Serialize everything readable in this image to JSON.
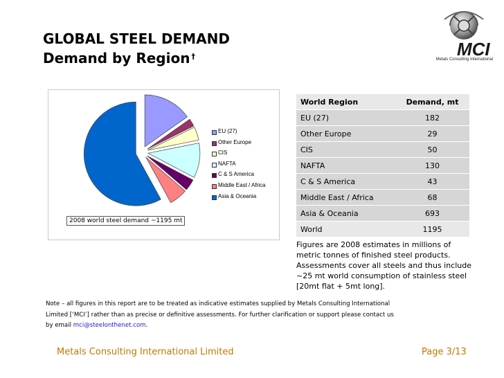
{
  "slide": {
    "title_line1": "GLOBAL STEEL DEMAND",
    "title_line2": "Demand by Region",
    "title_mark": "†"
  },
  "logo": {
    "text": "MCI",
    "subtitle": "Metals Consulting International",
    "icon": "globe-gear-icon"
  },
  "chart_data": {
    "type": "pie",
    "title": "2008 world steel demand ~1195 mt",
    "legend_position": "right",
    "categories": [
      "EU (27)",
      "Other Europe",
      "CIS",
      "NAFTA",
      "C & S America",
      "Middle East / Africa",
      "Asia & Oceania"
    ],
    "values": [
      182,
      29,
      50,
      130,
      43,
      68,
      693
    ],
    "colors": [
      "#9999ff",
      "#993366",
      "#ffffcc",
      "#ccffff",
      "#660066",
      "#ff8080",
      "#0066cc"
    ],
    "exploded": true
  },
  "table": {
    "headers": [
      "World Region",
      "Demand, mt"
    ],
    "rows": [
      {
        "region": "EU (27)",
        "value": "182"
      },
      {
        "region": "Other Europe",
        "value": "29"
      },
      {
        "region": "CIS",
        "value": "50"
      },
      {
        "region": "NAFTA",
        "value": "130"
      },
      {
        "region": "C & S America",
        "value": "43"
      },
      {
        "region": "Middle East / Africa",
        "value": "68"
      },
      {
        "region": "Asia & Oceania",
        "value": "693"
      }
    ],
    "total": {
      "region": "World",
      "value": "1195"
    },
    "header_bg": "#e8e8e8",
    "row_bg": "#d6d6d6"
  },
  "notes": "Figures are 2008 estimates in millions of metric tonnes of finished steel products. Assessments cover all steels and thus include ~25 mt world consumption of stainless steel [20mt flat + 5mt long].",
  "disclaimer": {
    "text_line1": "Note – all figures in this report are to be treated as indicative estimates supplied by Metals Consulting International",
    "text_line2": "Limited [‘MCI’] rather than as precise or definitive assessments. For further clarification or support please contact us",
    "text_line3_prefix": "by email ",
    "email": "mci@steelonthenet.com",
    "text_line3_suffix": "."
  },
  "footer": {
    "company": "Metals Consulting International Limited",
    "page": "Page 3/13",
    "color": "#c07800"
  }
}
